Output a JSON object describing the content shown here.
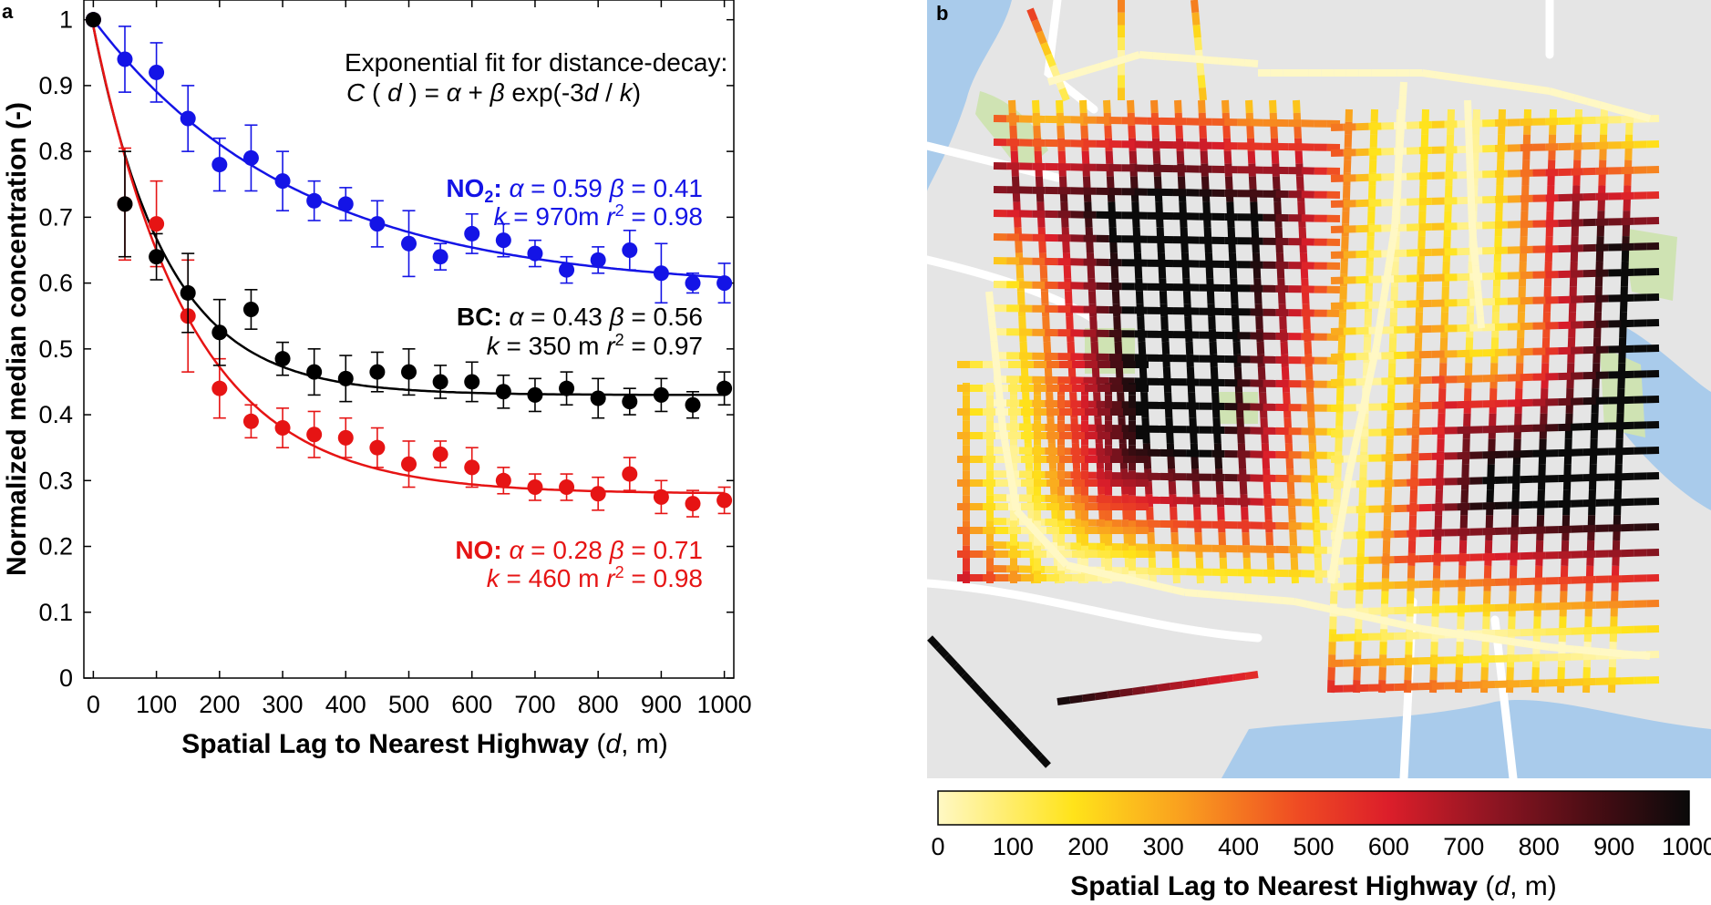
{
  "panel_a": {
    "label": "a",
    "fit_note_line1": "Exponential fit for distance-decay:",
    "fit_note_line2_parts": {
      "c": "C",
      "open": " ( ",
      "d": "d",
      "close": " ) = ",
      "alpha": "α",
      "plus": " + ",
      "beta": "β",
      "exp": " exp(-3",
      "d2": "d",
      "slash": " / ",
      "k": "k",
      "end": ")"
    }
  },
  "panel_b": {
    "label": "b",
    "colorbar": {
      "ticks": [
        "0",
        "100",
        "200",
        "300",
        "400",
        "500",
        "600",
        "700",
        "800",
        "900",
        "1000"
      ],
      "title_bold": "Spatial Lag to Nearest Highway",
      "title_var": "d",
      "title_unit": ", m"
    },
    "map_colors": {
      "background": "#e5e5e5",
      "water": "#a9cbeb",
      "park": "#cfe3b3",
      "major_road": "#ffffff"
    }
  },
  "chart_data": {
    "type": "scatter",
    "title": "",
    "xlabel_bold": "Spatial Lag to Nearest Highway",
    "xlabel_var": "d",
    "xlabel_unit": ", m",
    "ylabel": "Normalized median concentration (-)",
    "xlim": [
      -15,
      1015
    ],
    "ylim": [
      0,
      1.03
    ],
    "xticks": [
      0,
      100,
      200,
      300,
      400,
      500,
      600,
      700,
      800,
      900,
      1000
    ],
    "yticks": [
      0,
      0.1,
      0.2,
      0.3,
      0.4,
      0.5,
      0.6,
      0.7,
      0.8,
      0.9,
      1
    ],
    "ytick_labels": [
      "0",
      "0.1",
      "0.2",
      "0.3",
      "0.4",
      "0.5",
      "0.6",
      "0.7",
      "0.8",
      "0.9",
      "1"
    ],
    "grid": false,
    "x": [
      0,
      50,
      100,
      150,
      200,
      250,
      300,
      350,
      400,
      450,
      500,
      550,
      600,
      650,
      700,
      750,
      800,
      850,
      900,
      950,
      1000
    ],
    "series": [
      {
        "name": "NO2",
        "color": "#1414e6",
        "values": [
          1.0,
          0.94,
          0.92,
          0.85,
          0.78,
          0.79,
          0.755,
          0.725,
          0.72,
          0.69,
          0.66,
          0.64,
          0.675,
          0.665,
          0.645,
          0.62,
          0.635,
          0.65,
          0.615,
          0.6,
          0.6
        ],
        "err": [
          0,
          0.05,
          0.045,
          0.05,
          0.04,
          0.05,
          0.045,
          0.03,
          0.025,
          0.035,
          0.05,
          0.02,
          0.03,
          0.025,
          0.02,
          0.02,
          0.02,
          0.03,
          0.045,
          0.015,
          0.03
        ],
        "fit": {
          "alpha": 0.59,
          "beta": 0.41,
          "k": 970
        },
        "label_name": "NO",
        "label_sub": "2",
        "label_colon": ":",
        "line1": {
          "alpha_eq": " = 0.59  ",
          "beta_eq": " = 0.41"
        },
        "line2": {
          "k_eq": " = 970m ",
          "r2_eq": " = 0.98"
        }
      },
      {
        "name": "BC",
        "color": "#000000",
        "values": [
          1.0,
          0.72,
          0.64,
          0.585,
          0.525,
          0.56,
          0.485,
          0.465,
          0.455,
          0.465,
          0.465,
          0.45,
          0.45,
          0.435,
          0.43,
          0.44,
          0.425,
          0.42,
          0.43,
          0.415,
          0.44
        ],
        "err": [
          0,
          0.08,
          0.035,
          0.06,
          0.05,
          0.03,
          0.025,
          0.035,
          0.035,
          0.03,
          0.035,
          0.025,
          0.03,
          0.025,
          0.025,
          0.025,
          0.03,
          0.02,
          0.025,
          0.02,
          0.025
        ],
        "fit": {
          "alpha": 0.43,
          "beta": 0.56,
          "k": 350
        },
        "label_name": "BC",
        "label_sub": "",
        "label_colon": ":",
        "line1": {
          "alpha_eq": " = 0.43  ",
          "beta_eq": " = 0.56"
        },
        "line2": {
          "k_eq": " = 350 m ",
          "r2_eq": " = 0.97"
        }
      },
      {
        "name": "NO",
        "color": "#e61414",
        "values": [
          1.0,
          0.72,
          0.69,
          0.55,
          0.44,
          0.39,
          0.38,
          0.37,
          0.365,
          0.35,
          0.325,
          0.34,
          0.32,
          0.3,
          0.29,
          0.29,
          0.28,
          0.31,
          0.275,
          0.265,
          0.27
        ],
        "err": [
          0,
          0.085,
          0.065,
          0.085,
          0.045,
          0.025,
          0.03,
          0.035,
          0.03,
          0.03,
          0.035,
          0.02,
          0.03,
          0.02,
          0.02,
          0.02,
          0.025,
          0.025,
          0.025,
          0.02,
          0.02
        ],
        "fit": {
          "alpha": 0.28,
          "beta": 0.71,
          "k": 460
        },
        "label_name": "NO",
        "label_sub": "",
        "label_colon": ":",
        "line1": {
          "alpha_eq": " = 0.28  ",
          "beta_eq": " = 0.71"
        },
        "line2": {
          "k_eq": " = 460 m ",
          "r2_eq": " = 0.98"
        }
      }
    ]
  }
}
